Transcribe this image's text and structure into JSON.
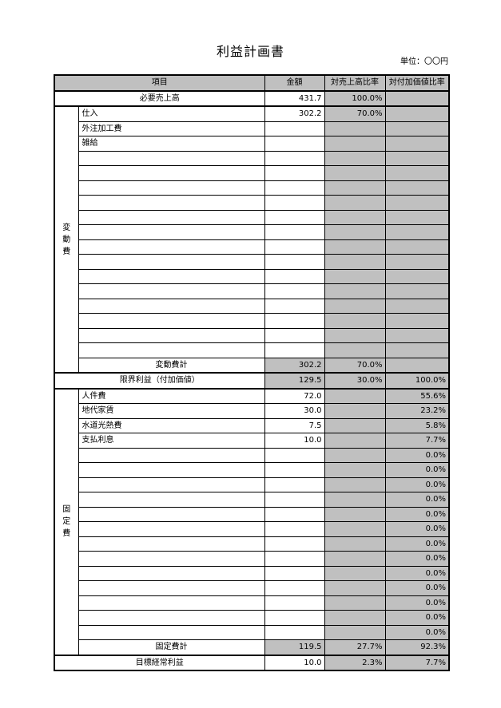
{
  "page": {
    "title": "利益計画書",
    "unit_label": "単位：〇〇円"
  },
  "colors": {
    "shaded_cell": "#c0c0c0",
    "border": "#000000",
    "background": "#ffffff"
  },
  "table": {
    "columns": [
      "項目",
      "金額",
      "対売上高比率",
      "対付加価値比率"
    ],
    "groups": {
      "variable": "変動費",
      "fixed": "固定費"
    },
    "rows": [
      {
        "kind": "full",
        "label": "必要売上高",
        "amount": "431.7",
        "ratio_sales": "100.0%",
        "ratio_va": "",
        "shaded_amount": false,
        "thick_top": true
      },
      {
        "kind": "item",
        "group_start": "variable",
        "group_span": 18,
        "label": "仕入",
        "amount": "302.2",
        "ratio_sales": "70.0%",
        "ratio_va": "",
        "thick_top": true
      },
      {
        "kind": "item",
        "label": "外注加工費",
        "amount": "",
        "ratio_sales": "",
        "ratio_va": ""
      },
      {
        "kind": "item",
        "label": "雑給",
        "amount": "",
        "ratio_sales": "",
        "ratio_va": ""
      },
      {
        "kind": "item",
        "label": "",
        "amount": "",
        "ratio_sales": "",
        "ratio_va": ""
      },
      {
        "kind": "item",
        "label": "",
        "amount": "",
        "ratio_sales": "",
        "ratio_va": ""
      },
      {
        "kind": "item",
        "label": "",
        "amount": "",
        "ratio_sales": "",
        "ratio_va": ""
      },
      {
        "kind": "item",
        "label": "",
        "amount": "",
        "ratio_sales": "",
        "ratio_va": ""
      },
      {
        "kind": "item",
        "label": "",
        "amount": "",
        "ratio_sales": "",
        "ratio_va": ""
      },
      {
        "kind": "item",
        "label": "",
        "amount": "",
        "ratio_sales": "",
        "ratio_va": ""
      },
      {
        "kind": "item",
        "label": "",
        "amount": "",
        "ratio_sales": "",
        "ratio_va": ""
      },
      {
        "kind": "item",
        "label": "",
        "amount": "",
        "ratio_sales": "",
        "ratio_va": ""
      },
      {
        "kind": "item",
        "label": "",
        "amount": "",
        "ratio_sales": "",
        "ratio_va": ""
      },
      {
        "kind": "item",
        "label": "",
        "amount": "",
        "ratio_sales": "",
        "ratio_va": ""
      },
      {
        "kind": "item",
        "label": "",
        "amount": "",
        "ratio_sales": "",
        "ratio_va": ""
      },
      {
        "kind": "item",
        "label": "",
        "amount": "",
        "ratio_sales": "",
        "ratio_va": ""
      },
      {
        "kind": "item",
        "label": "",
        "amount": "",
        "ratio_sales": "",
        "ratio_va": ""
      },
      {
        "kind": "item",
        "label": "",
        "amount": "",
        "ratio_sales": "",
        "ratio_va": ""
      },
      {
        "kind": "subtotal",
        "label": "変動費計",
        "amount": "302.2",
        "ratio_sales": "70.0%",
        "ratio_va": "",
        "shaded_amount": true
      },
      {
        "kind": "full",
        "label": "限界利益（付加価値）",
        "amount": "129.5",
        "ratio_sales": "30.0%",
        "ratio_va": "100.0%",
        "shaded_amount": true,
        "thick_top": true
      },
      {
        "kind": "item",
        "group_start": "fixed",
        "group_span": 18,
        "label": "人件費",
        "amount": "72.0",
        "ratio_sales": "",
        "ratio_va": "55.6%",
        "thick_top": true
      },
      {
        "kind": "item",
        "label": "地代家賃",
        "amount": "30.0",
        "ratio_sales": "",
        "ratio_va": "23.2%"
      },
      {
        "kind": "item",
        "label": "水道光熱費",
        "amount": "7.5",
        "ratio_sales": "",
        "ratio_va": "5.8%"
      },
      {
        "kind": "item",
        "label": "支払利息",
        "amount": "10.0",
        "ratio_sales": "",
        "ratio_va": "7.7%"
      },
      {
        "kind": "item",
        "label": "",
        "amount": "",
        "ratio_sales": "",
        "ratio_va": "0.0%"
      },
      {
        "kind": "item",
        "label": "",
        "amount": "",
        "ratio_sales": "",
        "ratio_va": "0.0%"
      },
      {
        "kind": "item",
        "label": "",
        "amount": "",
        "ratio_sales": "",
        "ratio_va": "0.0%"
      },
      {
        "kind": "item",
        "label": "",
        "amount": "",
        "ratio_sales": "",
        "ratio_va": "0.0%"
      },
      {
        "kind": "item",
        "label": "",
        "amount": "",
        "ratio_sales": "",
        "ratio_va": "0.0%"
      },
      {
        "kind": "item",
        "label": "",
        "amount": "",
        "ratio_sales": "",
        "ratio_va": "0.0%"
      },
      {
        "kind": "item",
        "label": "",
        "amount": "",
        "ratio_sales": "",
        "ratio_va": "0.0%"
      },
      {
        "kind": "item",
        "label": "",
        "amount": "",
        "ratio_sales": "",
        "ratio_va": "0.0%"
      },
      {
        "kind": "item",
        "label": "",
        "amount": "",
        "ratio_sales": "",
        "ratio_va": "0.0%"
      },
      {
        "kind": "item",
        "label": "",
        "amount": "",
        "ratio_sales": "",
        "ratio_va": "0.0%"
      },
      {
        "kind": "item",
        "label": "",
        "amount": "",
        "ratio_sales": "",
        "ratio_va": "0.0%"
      },
      {
        "kind": "item",
        "label": "",
        "amount": "",
        "ratio_sales": "",
        "ratio_va": "0.0%"
      },
      {
        "kind": "item",
        "label": "",
        "amount": "",
        "ratio_sales": "",
        "ratio_va": "0.0%"
      },
      {
        "kind": "subtotal",
        "label": "固定費計",
        "amount": "119.5",
        "ratio_sales": "27.7%",
        "ratio_va": "92.3%",
        "shaded_amount": true
      },
      {
        "kind": "full",
        "label": "目標経常利益",
        "amount": "10.0",
        "ratio_sales": "2.3%",
        "ratio_va": "7.7%",
        "shaded_amount": false,
        "thick_top": true
      }
    ]
  }
}
